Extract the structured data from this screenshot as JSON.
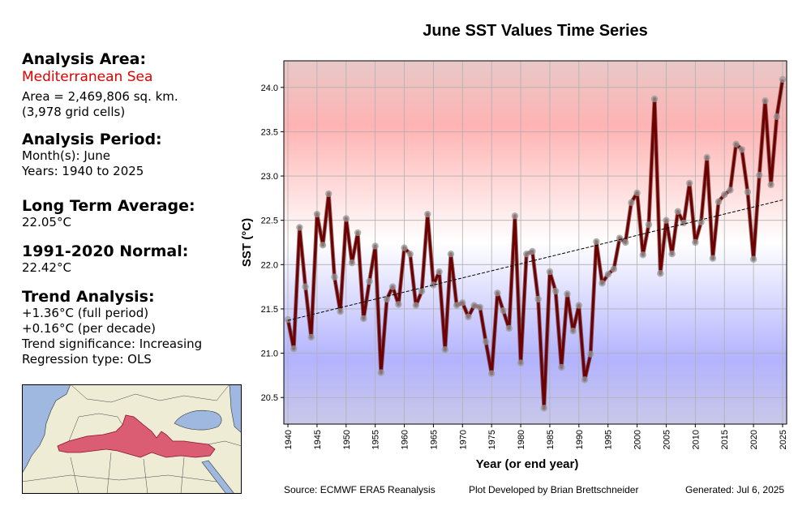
{
  "sidebar": {
    "area_heading": "Analysis Area:",
    "area_name": "Mediterranean Sea",
    "area_size": "Area = 2,469,806 sq. km.",
    "grid_cells": "(3,978 grid cells)",
    "period_heading": "Analysis Period:",
    "months": "Month(s): June",
    "years": "Years: 1940 to 2025",
    "lta_heading": "Long Term Average:",
    "lta_value": "22.05°C",
    "normal_heading": "1991-2020 Normal:",
    "normal_value": "22.42°C",
    "trend_heading": "Trend Analysis:",
    "trend_full": "+1.36°C (full period)",
    "trend_decade": "+0.16°C (per decade)",
    "trend_sig": "Trend significance: Increasing",
    "regression": "Regression type: OLS"
  },
  "footer": {
    "source": "Source: ECMWF ERA5 Reanalysis",
    "developer": "Plot Developed by Brian Brettschneider",
    "generated": "Generated: Jul 6, 2025"
  },
  "colors": {
    "line": "#6e0000",
    "marker": "#9a9a9a",
    "trend": "#000000",
    "warm": "#ffb3b3",
    "cool": "#b3b3ff",
    "sea": "#9fb8e0",
    "land": "#efecd5",
    "highlight": "#d9506a"
  },
  "chart_data": {
    "type": "line",
    "title": "June SST Values Time Series",
    "xlabel": "Year (or end year)",
    "ylabel": "SST (°C)",
    "xlim": [
      1939.3,
      2025.7
    ],
    "ylim": [
      20.2,
      24.3
    ],
    "xticks": [
      1940,
      1945,
      1950,
      1955,
      1960,
      1965,
      1970,
      1975,
      1980,
      1985,
      1990,
      1995,
      2000,
      2005,
      2010,
      2015,
      2020,
      2025
    ],
    "yticks": [
      20.5,
      21.0,
      21.5,
      22.0,
      22.5,
      23.0,
      23.5,
      24.0
    ],
    "ytick_labels": [
      "20.5",
      "21.0",
      "21.5",
      "22.0",
      "22.5",
      "23.0",
      "23.5",
      "24.0"
    ],
    "grid": true,
    "x": [
      1940,
      1941,
      1942,
      1943,
      1944,
      1945,
      1946,
      1947,
      1948,
      1949,
      1950,
      1951,
      1952,
      1953,
      1954,
      1955,
      1956,
      1957,
      1958,
      1959,
      1960,
      1961,
      1962,
      1963,
      1964,
      1965,
      1966,
      1967,
      1968,
      1969,
      1970,
      1971,
      1972,
      1973,
      1974,
      1975,
      1976,
      1977,
      1978,
      1979,
      1980,
      1981,
      1982,
      1983,
      1984,
      1985,
      1986,
      1987,
      1988,
      1989,
      1990,
      1991,
      1992,
      1993,
      1994,
      1995,
      1996,
      1997,
      1998,
      1999,
      2000,
      2001,
      2002,
      2003,
      2004,
      2005,
      2006,
      2007,
      2008,
      2009,
      2010,
      2011,
      2012,
      2013,
      2014,
      2015,
      2016,
      2017,
      2018,
      2019,
      2020,
      2021,
      2022,
      2023,
      2024,
      2025
    ],
    "series": [
      {
        "values": [
          21.38,
          21.05,
          22.42,
          21.75,
          21.18,
          22.57,
          22.22,
          22.8,
          21.86,
          21.47,
          22.52,
          22.02,
          22.36,
          21.39,
          21.81,
          22.21,
          20.78,
          21.61,
          21.75,
          21.55,
          22.19,
          22.12,
          21.54,
          21.7,
          22.57,
          21.77,
          21.92,
          21.04,
          22.12,
          21.54,
          21.57,
          21.41,
          21.54,
          21.52,
          21.13,
          20.77,
          21.68,
          21.48,
          21.28,
          22.55,
          20.89,
          22.12,
          22.15,
          21.61,
          20.38,
          21.92,
          21.7,
          20.84,
          21.67,
          21.25,
          21.54,
          20.7,
          20.99,
          22.26,
          21.79,
          21.89,
          21.95,
          22.3,
          22.25,
          22.7,
          22.81,
          22.11,
          22.45,
          23.87,
          21.9,
          22.5,
          22.12,
          22.6,
          22.47,
          22.92,
          22.25,
          22.48,
          23.21,
          22.07,
          22.71,
          22.79,
          22.84,
          23.36,
          23.3,
          22.82,
          22.06,
          23.01,
          23.85,
          22.9,
          23.67,
          24.09
        ]
      }
    ],
    "trend": {
      "x": [
        1940,
        2025
      ],
      "y": [
        21.37,
        22.73
      ]
    }
  }
}
